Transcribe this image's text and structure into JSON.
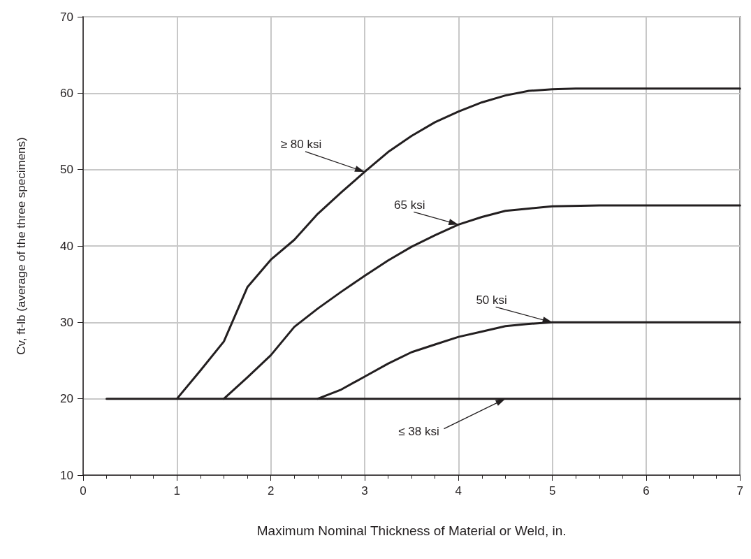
{
  "chart_data": {
    "type": "line",
    "xlabel": "Maximum Nominal Thickness of Material or Weld, in.",
    "ylabel": "Cv, ft-lb (average of the three specimens)",
    "xlim": [
      0,
      7
    ],
    "xticks": [
      0,
      1,
      2,
      3,
      4,
      5,
      6,
      7
    ],
    "ylim": [
      10,
      70
    ],
    "yticks": [
      10,
      20,
      30,
      40,
      50,
      60,
      70
    ],
    "grid": true,
    "marker": "none",
    "line_style": "solid",
    "series": [
      {
        "color": "#231f20",
        "x": [
          0.25,
          7
        ],
        "values": [
          20,
          20
        ]
      },
      {
        "color": "#231f20",
        "x": [
          2.5,
          2.75,
          3,
          3.25,
          3.5,
          3.75,
          4,
          4.25,
          4.5,
          4.75,
          5,
          7
        ],
        "values": [
          20,
          21.2,
          22.9,
          24.6,
          26.1,
          27.1,
          28.1,
          28.8,
          29.5,
          29.8,
          30,
          30
        ]
      },
      {
        "color": "#231f20",
        "x": [
          1.5,
          1.75,
          2,
          2.25,
          2.5,
          2.75,
          3,
          3.25,
          3.5,
          3.75,
          4,
          4.25,
          4.5,
          4.75,
          5,
          5.5,
          7
        ],
        "values": [
          20,
          22.8,
          25.7,
          29.4,
          31.8,
          34,
          36.1,
          38.1,
          39.9,
          41.4,
          42.8,
          43.8,
          44.6,
          44.9,
          45.2,
          45.3,
          45.3
        ]
      },
      {
        "color": "#231f20",
        "x": [
          1,
          1.25,
          1.5,
          1.75,
          2,
          2.25,
          2.5,
          2.75,
          3,
          3.25,
          3.5,
          3.75,
          4,
          4.25,
          4.5,
          4.75,
          5,
          5.25,
          7
        ],
        "values": [
          20,
          23.7,
          27.5,
          34.6,
          38.2,
          40.8,
          44.2,
          47,
          49.7,
          52.3,
          54.4,
          56.2,
          57.6,
          58.8,
          59.7,
          60.3,
          60.5,
          60.6,
          60.6
        ]
      }
    ],
    "annotations": [
      {
        "text": "≥ 80 ksi",
        "x": 3,
        "y": 49.7
      },
      {
        "text": "65 ksi",
        "x": 4,
        "y": 42.8
      },
      {
        "text": "50 ksi",
        "x": 5,
        "y": 30
      },
      {
        "text": "≤ 38 ksi",
        "x": 4.5,
        "y": 20
      }
    ]
  }
}
